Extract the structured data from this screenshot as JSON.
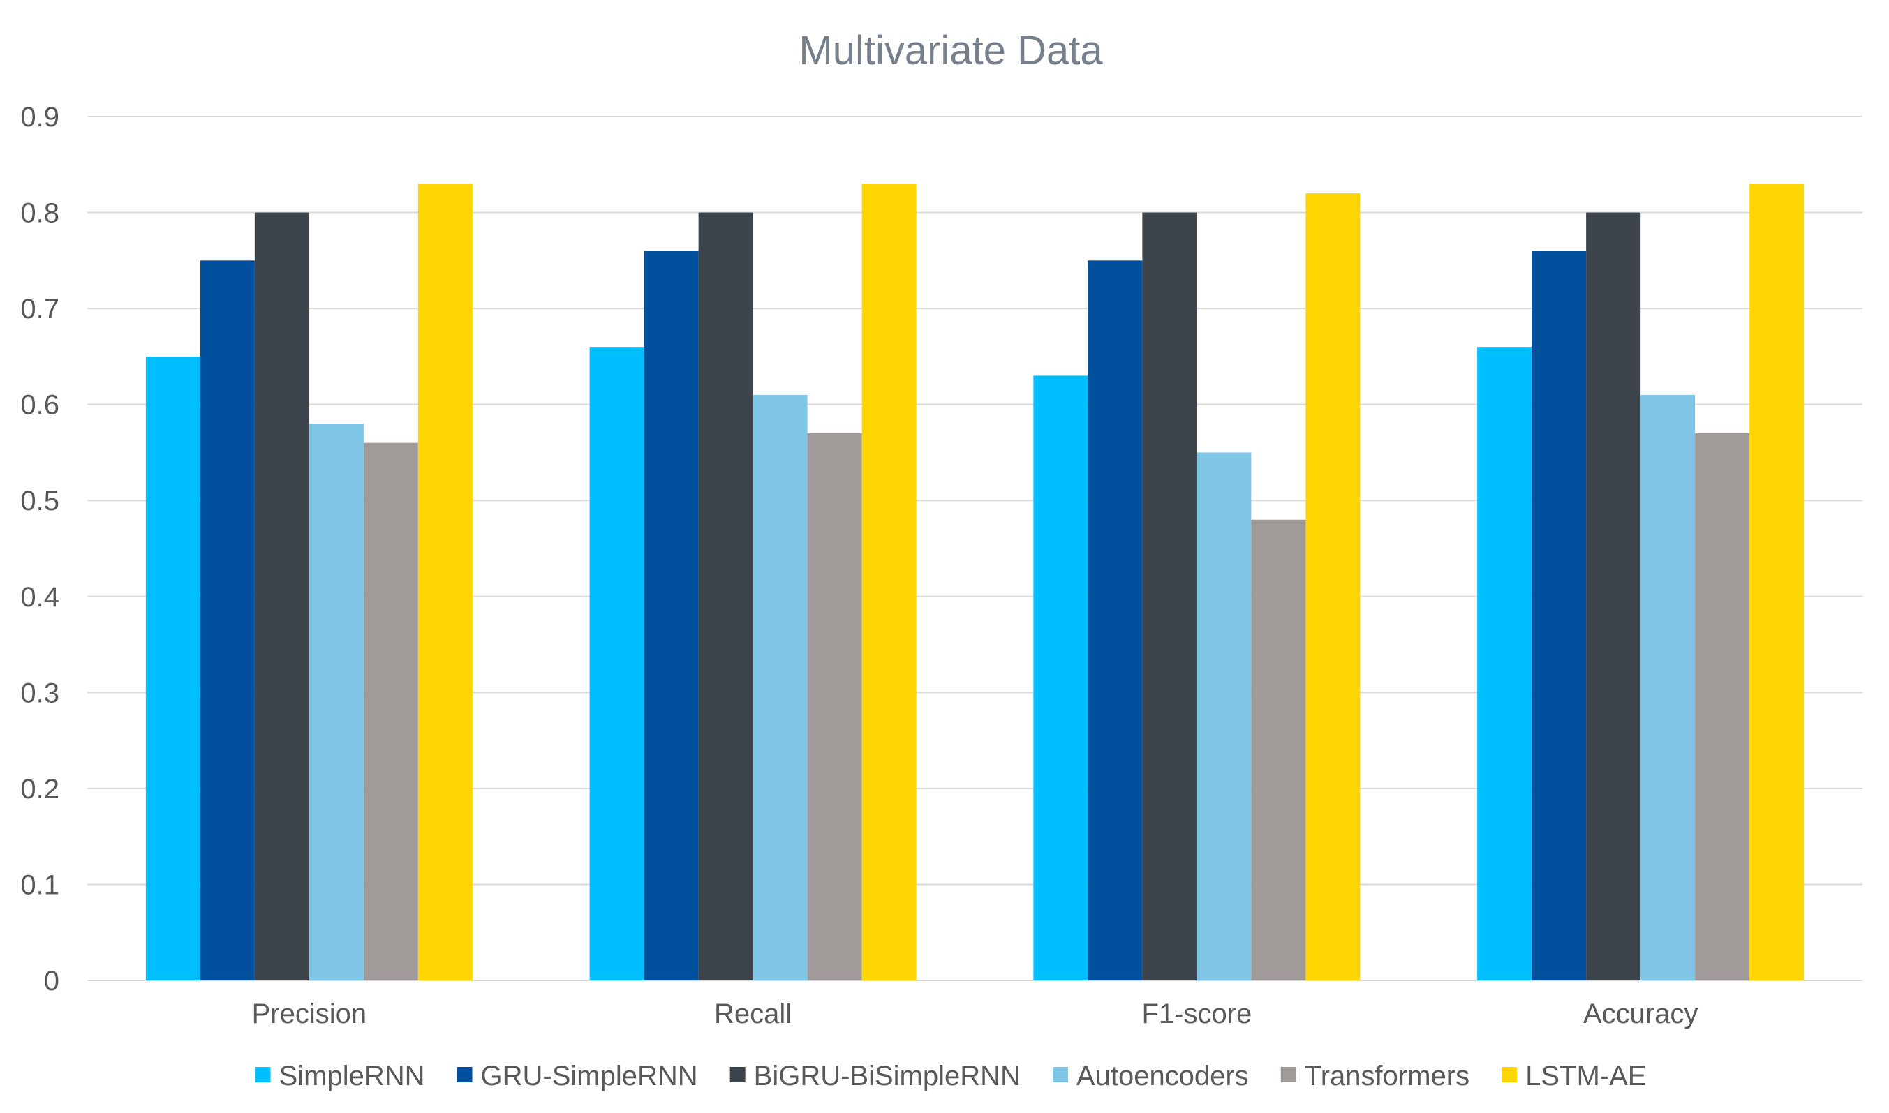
{
  "chart_data": {
    "type": "bar",
    "title": "Multivariate Data",
    "xlabel": "",
    "ylabel": "",
    "ylim": [
      0,
      0.9
    ],
    "yticks": [
      "0",
      "0.1",
      "0.2",
      "0.3",
      "0.4",
      "0.5",
      "0.6",
      "0.7",
      "0.8",
      "0.9"
    ],
    "grid": true,
    "legend_position": "bottom",
    "categories": [
      "Precision",
      "Recall",
      "F1-score",
      "Accuracy"
    ],
    "series": [
      {
        "name": "SimpleRNN",
        "color": "#00bfff",
        "values": [
          0.65,
          0.66,
          0.63,
          0.66
        ]
      },
      {
        "name": "GRU-SimpleRNN",
        "color": "#00509d",
        "values": [
          0.75,
          0.76,
          0.75,
          0.76
        ]
      },
      {
        "name": "BiGRU-BiSimpleRNN",
        "color": "#3d444b",
        "values": [
          0.8,
          0.8,
          0.8,
          0.8
        ]
      },
      {
        "name": "Autoencoders",
        "color": "#7fc5e6",
        "values": [
          0.58,
          0.61,
          0.55,
          0.61
        ]
      },
      {
        "name": "Transformers",
        "color": "#a09b98",
        "values": [
          0.56,
          0.57,
          0.48,
          0.57
        ]
      },
      {
        "name": "LSTM-AE",
        "color": "#ffd500",
        "values": [
          0.83,
          0.83,
          0.82,
          0.83
        ]
      }
    ]
  }
}
